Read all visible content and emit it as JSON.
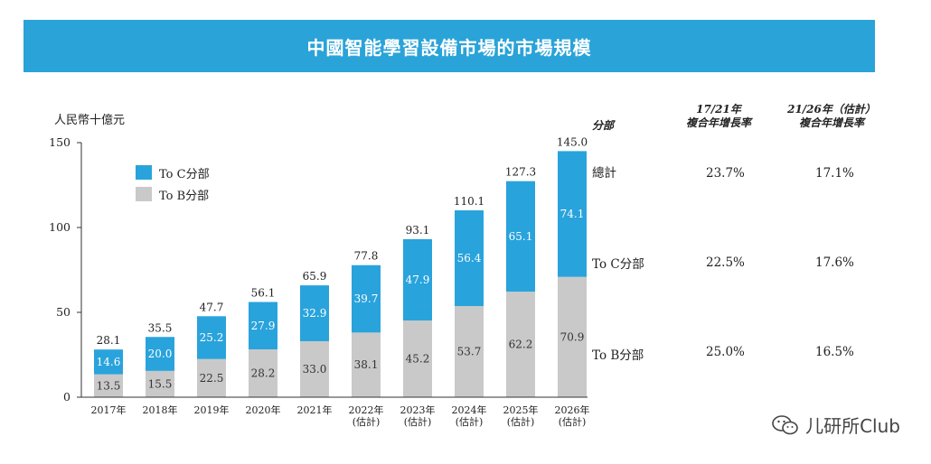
{
  "title": "中國智能學習設備市場的市場規模",
  "unit_label": "人民幣十億元",
  "colors": {
    "banner": "#2aa3d8",
    "toc": "#29a3dc",
    "tob": "#c9c9c9"
  },
  "chart_data": {
    "type": "bar",
    "stacked": true,
    "title": "中國智能學習設備市場的市場規模",
    "ylabel": "人民幣十億元",
    "ylim": [
      0,
      150
    ],
    "yticks": [
      "0",
      "50",
      "100",
      "150"
    ],
    "categories": [
      [
        "2017年"
      ],
      [
        "2018年"
      ],
      [
        "2019年"
      ],
      [
        "2020年"
      ],
      [
        "2021年"
      ],
      [
        "2022年",
        "(估計)"
      ],
      [
        "2023年",
        "(估計)"
      ],
      [
        "2024年",
        "(估計)"
      ],
      [
        "2025年",
        "(估計)"
      ],
      [
        "2026年",
        "(估計)"
      ]
    ],
    "series": [
      {
        "name": "To B分部",
        "values": [
          13.5,
          15.5,
          22.5,
          28.2,
          33.0,
          38.1,
          45.2,
          53.7,
          62.2,
          70.9
        ]
      },
      {
        "name": "To C分部",
        "values": [
          14.6,
          20.0,
          25.2,
          27.9,
          32.9,
          39.7,
          47.9,
          56.4,
          65.1,
          74.1
        ]
      }
    ],
    "totals": [
      28.1,
      35.5,
      47.7,
      56.1,
      65.9,
      77.8,
      93.1,
      110.1,
      127.3,
      145.0
    ],
    "legend": [
      "To C分部",
      "To B分部"
    ]
  },
  "cagr_table": {
    "headers": [
      "分部",
      "17/21年\n複合年增長率",
      "21/26年（估計）\n複合年增長率"
    ],
    "rows": [
      {
        "segment": "總計",
        "cagr_17_21": "23.7%",
        "cagr_21_26": "17.1%"
      },
      {
        "segment": "To C分部",
        "cagr_17_21": "22.5%",
        "cagr_21_26": "17.6%"
      },
      {
        "segment": "To B分部",
        "cagr_17_21": "25.0%",
        "cagr_21_26": "16.5%"
      }
    ]
  },
  "watermark": {
    "text": "儿研所Club",
    "icon": "wechat-icon"
  }
}
